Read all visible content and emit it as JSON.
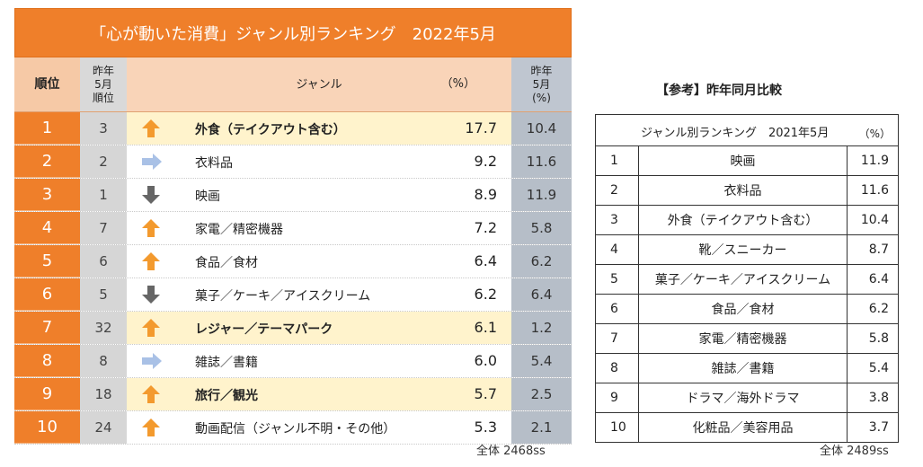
{
  "main": {
    "title": "「心が動いた消費」ジャンル別ランキング　2022年5月",
    "headers": {
      "rank": "順位",
      "prev": "昨年\n5月\n順位",
      "genre": "ジャンル",
      "pct": "（%）",
      "last": "昨年\n5月\n(%)"
    },
    "total": "全体 2468ss"
  },
  "reference": {
    "title": "【参考】昨年同月比較",
    "header": "ジャンル別ランキング　2021年5月",
    "unit": "（%）",
    "total": "全体 2489ss"
  },
  "colors": {
    "accent": "#ef7f2a",
    "up_arrow": "#f39a2e",
    "flat_arrow": "#a9c1e6",
    "down_arrow": "#666666"
  },
  "chart_data": [
    {
      "type": "table",
      "title": "「心が動いた消費」ジャンル別ランキング　2022年5月",
      "columns": [
        "順位",
        "昨年5月順位",
        "ジャンル",
        "（%）",
        "昨年5月(%)"
      ],
      "rows": [
        {
          "rank": "1",
          "prev_rank": "3",
          "trend": "up-arrow-icon",
          "genre": "外食（テイクアウト含む）",
          "pct": "17.7",
          "last_pct": "10.4",
          "highlight": true,
          "bold": true
        },
        {
          "rank": "2",
          "prev_rank": "2",
          "trend": "right-arrow-icon",
          "genre": "衣料品",
          "pct": "9.2",
          "last_pct": "11.6",
          "highlight": false,
          "bold": false
        },
        {
          "rank": "3",
          "prev_rank": "1",
          "trend": "down-arrow-icon",
          "genre": "映画",
          "pct": "8.9",
          "last_pct": "11.9",
          "highlight": false,
          "bold": false
        },
        {
          "rank": "4",
          "prev_rank": "7",
          "trend": "up-arrow-icon",
          "genre": "家電／精密機器",
          "pct": "7.2",
          "last_pct": "5.8",
          "highlight": false,
          "bold": false
        },
        {
          "rank": "5",
          "prev_rank": "6",
          "trend": "up-arrow-icon",
          "genre": "食品／食材",
          "pct": "6.4",
          "last_pct": "6.2",
          "highlight": false,
          "bold": false
        },
        {
          "rank": "6",
          "prev_rank": "5",
          "trend": "down-arrow-icon",
          "genre": "菓子／ケーキ／アイスクリーム",
          "pct": "6.2",
          "last_pct": "6.4",
          "highlight": false,
          "bold": false
        },
        {
          "rank": "7",
          "prev_rank": "32",
          "trend": "up-arrow-icon",
          "genre": "レジャー／テーマパーク",
          "pct": "6.1",
          "last_pct": "1.2",
          "highlight": true,
          "bold": true
        },
        {
          "rank": "8",
          "prev_rank": "8",
          "trend": "right-arrow-icon",
          "genre": "雑誌／書籍",
          "pct": "6.0",
          "last_pct": "5.4",
          "highlight": false,
          "bold": false
        },
        {
          "rank": "9",
          "prev_rank": "18",
          "trend": "up-arrow-icon",
          "genre": "旅行／観光",
          "pct": "5.7",
          "last_pct": "2.5",
          "highlight": true,
          "bold": true
        },
        {
          "rank": "10",
          "prev_rank": "24",
          "trend": "up-arrow-icon",
          "genre": "動画配信（ジャンル不明・その他）",
          "pct": "5.3",
          "last_pct": "2.1",
          "highlight": false,
          "bold": false
        }
      ]
    },
    {
      "type": "table",
      "title": "ジャンル別ランキング　2021年5月",
      "rows": [
        {
          "rank": "1",
          "genre": "映画",
          "pct": "11.9"
        },
        {
          "rank": "2",
          "genre": "衣料品",
          "pct": "11.6"
        },
        {
          "rank": "3",
          "genre": "外食（テイクアウト含む）",
          "pct": "10.4"
        },
        {
          "rank": "4",
          "genre": "靴／スニーカー",
          "pct": "8.7"
        },
        {
          "rank": "5",
          "genre": "菓子／ケーキ／アイスクリーム",
          "pct": "6.4"
        },
        {
          "rank": "6",
          "genre": "食品／食材",
          "pct": "6.2"
        },
        {
          "rank": "7",
          "genre": "家電／精密機器",
          "pct": "5.8"
        },
        {
          "rank": "8",
          "genre": "雑誌／書籍",
          "pct": "5.4"
        },
        {
          "rank": "9",
          "genre": "ドラマ／海外ドラマ",
          "pct": "3.8"
        },
        {
          "rank": "10",
          "genre": "化粧品／美容用品",
          "pct": "3.7"
        }
      ]
    }
  ]
}
